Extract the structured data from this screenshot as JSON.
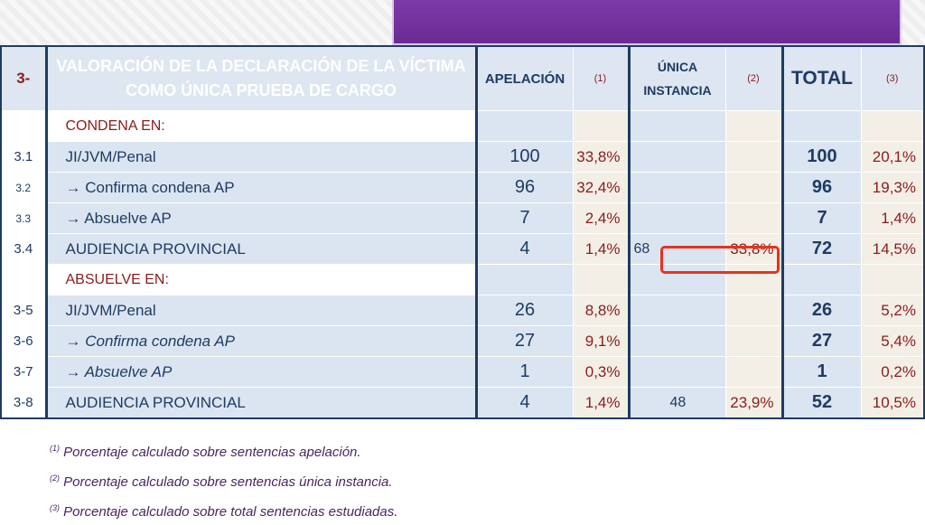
{
  "header": {
    "section_number": "3-",
    "title_line1": "VALORACIÓN DE LA DECLARACIÓN DE LA VÍCTIMA",
    "title_line2": "COMO ÚNICA PRUEBA DE CARGO",
    "col_apelacion": "APELACIÓN",
    "col_apelacion_note": "(1)",
    "col_unica_line1": "ÚNICA",
    "col_unica_line2": "INSTANCIA",
    "col_unica_note": "(2)",
    "col_total": "TOTAL",
    "col_total_note": "(3)"
  },
  "rows": [
    {
      "id": "",
      "label": "CONDENA EN:",
      "apel": "",
      "apel_pct": "",
      "ui": "",
      "ui_pct": "",
      "total": "",
      "total_pct": ""
    },
    {
      "id": "3.1",
      "label": "JI/JVM/Penal",
      "apel": "100",
      "apel_pct": "33,8%",
      "ui": "",
      "ui_pct": "",
      "total": "100",
      "total_pct": "20,1%"
    },
    {
      "id": "3.2",
      "label": "→ Confirma condena AP",
      "apel": "96",
      "apel_pct": "32,4%",
      "ui": "",
      "ui_pct": "",
      "total": "96",
      "total_pct": "19,3%"
    },
    {
      "id": "3.3",
      "label": "→ Absuelve AP",
      "apel": "7",
      "apel_pct": "2,4%",
      "ui": "",
      "ui_pct": "",
      "total": "7",
      "total_pct": "1,4%"
    },
    {
      "id": "3.4",
      "label": "AUDIENCIA PROVINCIAL",
      "apel": "4",
      "apel_pct": "1,4%",
      "ui": "68",
      "ui_pct": "33,8%",
      "total": "72",
      "total_pct": "14,5%"
    },
    {
      "id": "",
      "label": "ABSUELVE EN:",
      "apel": "",
      "apel_pct": "",
      "ui": "",
      "ui_pct": "",
      "total": "",
      "total_pct": ""
    },
    {
      "id": "3-5",
      "label": "JI/JVM/Penal",
      "apel": "26",
      "apel_pct": "8,8%",
      "ui": "",
      "ui_pct": "",
      "total": "26",
      "total_pct": "5,2%"
    },
    {
      "id": "3-6",
      "label": "→ Confirma condena AP",
      "apel": "27",
      "apel_pct": "9,1%",
      "ui": "",
      "ui_pct": "",
      "total": "27",
      "total_pct": "5,4%"
    },
    {
      "id": "3-7",
      "label": "→ Absuelve AP",
      "apel": "1",
      "apel_pct": "0,3%",
      "ui": "",
      "ui_pct": "",
      "total": "1",
      "total_pct": "0,2%"
    },
    {
      "id": "3-8",
      "label": "AUDIENCIA PROVINCIAL",
      "apel": "4",
      "apel_pct": "1,4%",
      "ui": "48",
      "ui_pct": "23,9%",
      "total": "52",
      "total_pct": "10,5%"
    }
  ],
  "notes": {
    "n1_mark": "(1)",
    "n1": "Porcentaje calculado sobre sentencias apelación.",
    "n2_mark": "(2)",
    "n2": "Porcentaje calculado sobre sentencias única instancia.",
    "n3_mark": "(3)",
    "n3": "Porcentaje calculado sobre total sentencias estudiadas."
  },
  "colors": {
    "title_bg": "#9b1b2e",
    "highlight_border": "#e8321e",
    "navy": "#1f3b63"
  }
}
